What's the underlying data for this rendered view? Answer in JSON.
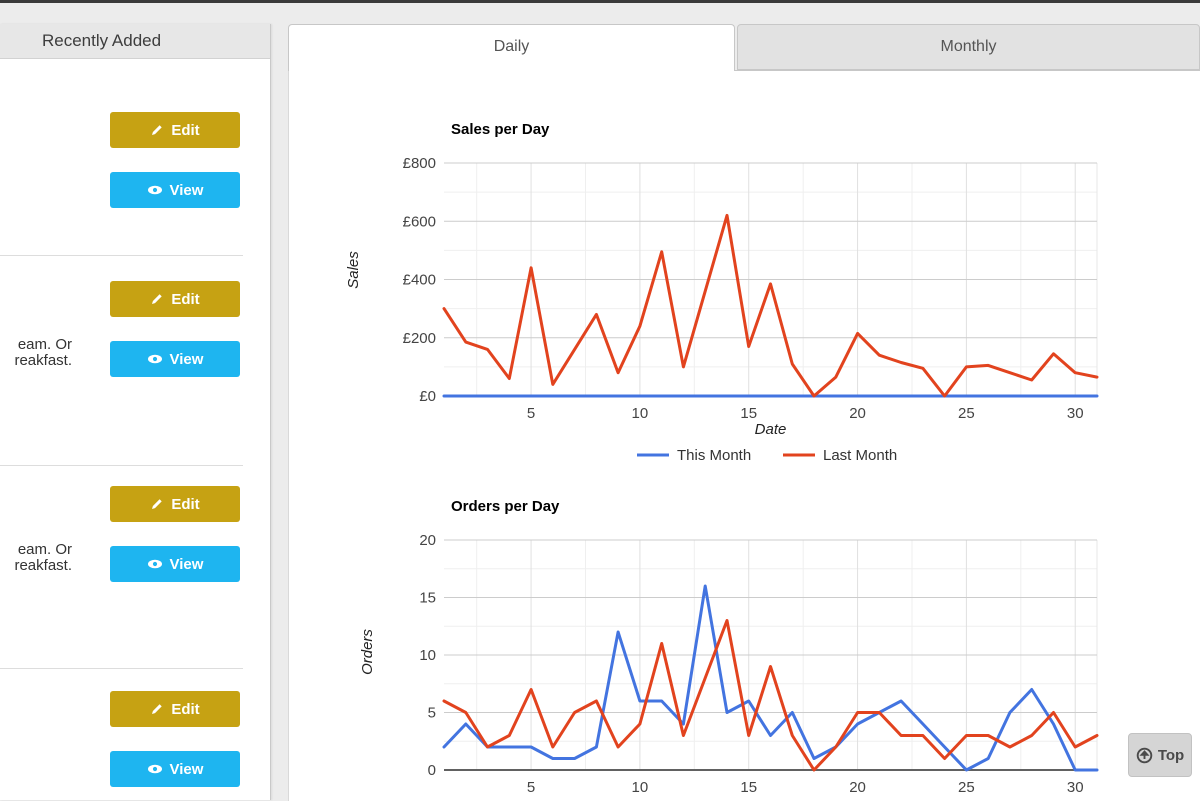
{
  "page": {
    "top_button_label": "Top"
  },
  "sidebar": {
    "header": "Recently Added",
    "edit_label": "Edit",
    "view_label": "View",
    "items": [
      {
        "text_lines": []
      },
      {
        "text_lines": [
          "eam. Or",
          "reakfast."
        ]
      },
      {
        "text_lines": [
          "eam. Or",
          "reakfast."
        ]
      },
      {
        "text_lines": []
      }
    ]
  },
  "tabs": [
    {
      "label": "Daily",
      "active": true
    },
    {
      "label": "Monthly",
      "active": false
    }
  ],
  "colors": {
    "this_month": "#4374E0",
    "last_month": "#E2431E",
    "edit_button": "#C6A213",
    "view_button": "#1EB5F0"
  },
  "chart_data": [
    {
      "type": "line",
      "title": "Sales per Day",
      "xlabel": "Date",
      "ylabel": "Sales",
      "xlim": [
        1,
        31
      ],
      "ylim": [
        0,
        800
      ],
      "xticks": [
        5,
        10,
        15,
        20,
        25,
        30
      ],
      "yticks": [
        0,
        200,
        400,
        600,
        800
      ],
      "ytick_prefix": "£",
      "minor_x_step": 2.5,
      "minor_y_step": 100,
      "grid": true,
      "legend_position": "bottom",
      "legend": [
        "This Month",
        "Last Month"
      ],
      "x": [
        1,
        2,
        3,
        4,
        5,
        6,
        7,
        8,
        9,
        10,
        11,
        12,
        13,
        14,
        15,
        16,
        17,
        18,
        19,
        20,
        21,
        22,
        23,
        24,
        25,
        26,
        27,
        28,
        29,
        30,
        31
      ],
      "series": [
        {
          "name": "This Month",
          "color": "#4374E0",
          "values": [
            0,
            0,
            0,
            0,
            0,
            0,
            0,
            0,
            0,
            0,
            0,
            0,
            0,
            0,
            0,
            0,
            0,
            0,
            0,
            0,
            0,
            0,
            0,
            0,
            0,
            0,
            0,
            0,
            0,
            0,
            0
          ]
        },
        {
          "name": "Last Month",
          "color": "#E2431E",
          "values": [
            300,
            185,
            160,
            60,
            440,
            40,
            160,
            280,
            80,
            240,
            495,
            100,
            360,
            620,
            170,
            385,
            110,
            0,
            65,
            215,
            140,
            115,
            95,
            0,
            100,
            105,
            80,
            55,
            145,
            80,
            65
          ]
        }
      ]
    },
    {
      "type": "line",
      "title": "Orders per Day",
      "xlabel": "Date",
      "ylabel": "Orders",
      "xlim": [
        1,
        31
      ],
      "ylim": [
        0,
        20
      ],
      "xticks": [
        5,
        10,
        15,
        20,
        25,
        30
      ],
      "yticks": [
        0,
        5,
        10,
        15,
        20
      ],
      "ytick_prefix": "",
      "minor_x_step": 2.5,
      "minor_y_step": 2.5,
      "grid": true,
      "legend_position": "none",
      "legend": [
        "This Month",
        "Last Month"
      ],
      "x": [
        1,
        2,
        3,
        4,
        5,
        6,
        7,
        8,
        9,
        10,
        11,
        12,
        13,
        14,
        15,
        16,
        17,
        18,
        19,
        20,
        21,
        22,
        23,
        24,
        25,
        26,
        27,
        28,
        29,
        30,
        31
      ],
      "series": [
        {
          "name": "This Month",
          "color": "#4374E0",
          "values": [
            2,
            4,
            2,
            2,
            2,
            1,
            1,
            2,
            12,
            6,
            6,
            4,
            16,
            5,
            6,
            3,
            5,
            1,
            2,
            4,
            5,
            6,
            4,
            2,
            0,
            1,
            5,
            7,
            4,
            0,
            0
          ]
        },
        {
          "name": "Last Month",
          "color": "#E2431E",
          "values": [
            6,
            5,
            2,
            3,
            7,
            2,
            5,
            6,
            2,
            4,
            11,
            3,
            8,
            13,
            3,
            9,
            3,
            0,
            2,
            5,
            5,
            3,
            3,
            1,
            3,
            3,
            2,
            3,
            5,
            2,
            3
          ]
        }
      ]
    }
  ]
}
